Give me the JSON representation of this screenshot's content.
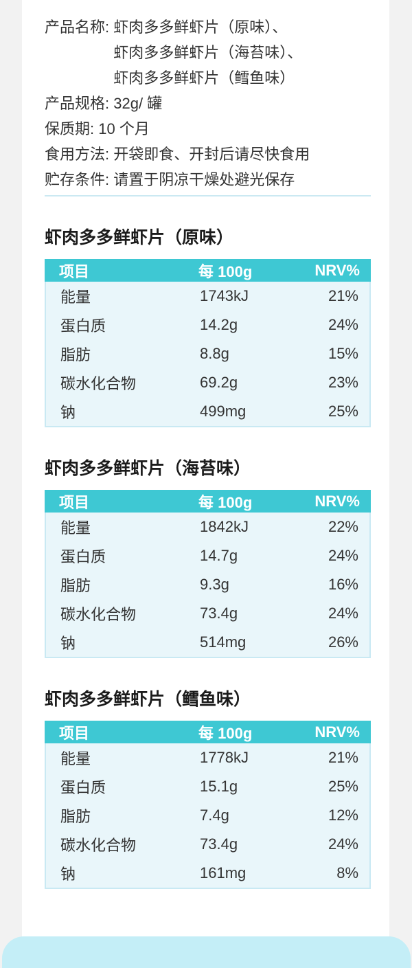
{
  "colors": {
    "page_background": "#F2F2F2",
    "card_background": "#FFFFFF",
    "table_header_teal": "#3EC8D3",
    "table_body_blue": "#E9F6FA",
    "table_border_blue": "#C9E9F3",
    "divider_blue": "#CBE9F2",
    "bottom_band_blue": "#C4EEF7",
    "text_dark": "#333333",
    "header_text": "#FFFFFF"
  },
  "product_info": {
    "fields": [
      {
        "label": "产品名称: ",
        "lines": [
          "虾肉多多鲜虾片（原味）、",
          "虾肉多多鲜虾片（海苔味）、",
          "虾肉多多鲜虾片（鳕鱼味）"
        ]
      },
      {
        "label": "产品规格: ",
        "lines": [
          "32g/ 罐"
        ]
      },
      {
        "label": "保质期: ",
        "lines": [
          "10 个月"
        ]
      },
      {
        "label": "食用方法: ",
        "lines": [
          "开袋即食、开封后请尽快食用"
        ]
      },
      {
        "label": "贮存条件: ",
        "lines": [
          "请置于阴凉干燥处避光保存"
        ]
      }
    ]
  },
  "tables": [
    {
      "title": "虾肉多多鲜虾片（原味）",
      "headers": {
        "item": "项目",
        "per100g": "每 100g",
        "nrv": "NRV%"
      },
      "rows": [
        {
          "item": "能量",
          "per100g": "1743kJ",
          "nrv": "21%"
        },
        {
          "item": "蛋白质",
          "per100g": "14.2g",
          "nrv": "24%"
        },
        {
          "item": "脂肪",
          "per100g": "8.8g",
          "nrv": "15%"
        },
        {
          "item": "碳水化合物",
          "per100g": "69.2g",
          "nrv": "23%"
        },
        {
          "item": "钠",
          "per100g": "499mg",
          "nrv": "25%"
        }
      ]
    },
    {
      "title": "虾肉多多鲜虾片（海苔味）",
      "headers": {
        "item": "项目",
        "per100g": "每 100g",
        "nrv": "NRV%"
      },
      "rows": [
        {
          "item": "能量",
          "per100g": "1842kJ",
          "nrv": "22%"
        },
        {
          "item": "蛋白质",
          "per100g": "14.7g",
          "nrv": "24%"
        },
        {
          "item": "脂肪",
          "per100g": "9.3g",
          "nrv": "16%"
        },
        {
          "item": "碳水化合物",
          "per100g": "73.4g",
          "nrv": "24%"
        },
        {
          "item": "钠",
          "per100g": "514mg",
          "nrv": "26%"
        }
      ]
    },
    {
      "title": "虾肉多多鲜虾片（鳕鱼味）",
      "headers": {
        "item": "项目",
        "per100g": "每 100g",
        "nrv": "NRV%"
      },
      "rows": [
        {
          "item": "能量",
          "per100g": "1778kJ",
          "nrv": "21%"
        },
        {
          "item": "蛋白质",
          "per100g": "15.1g",
          "nrv": "25%"
        },
        {
          "item": "脂肪",
          "per100g": "7.4g",
          "nrv": "12%"
        },
        {
          "item": "碳水化合物",
          "per100g": "73.4g",
          "nrv": "24%"
        },
        {
          "item": "钠",
          "per100g": "161mg",
          "nrv": "8%"
        }
      ]
    }
  ]
}
